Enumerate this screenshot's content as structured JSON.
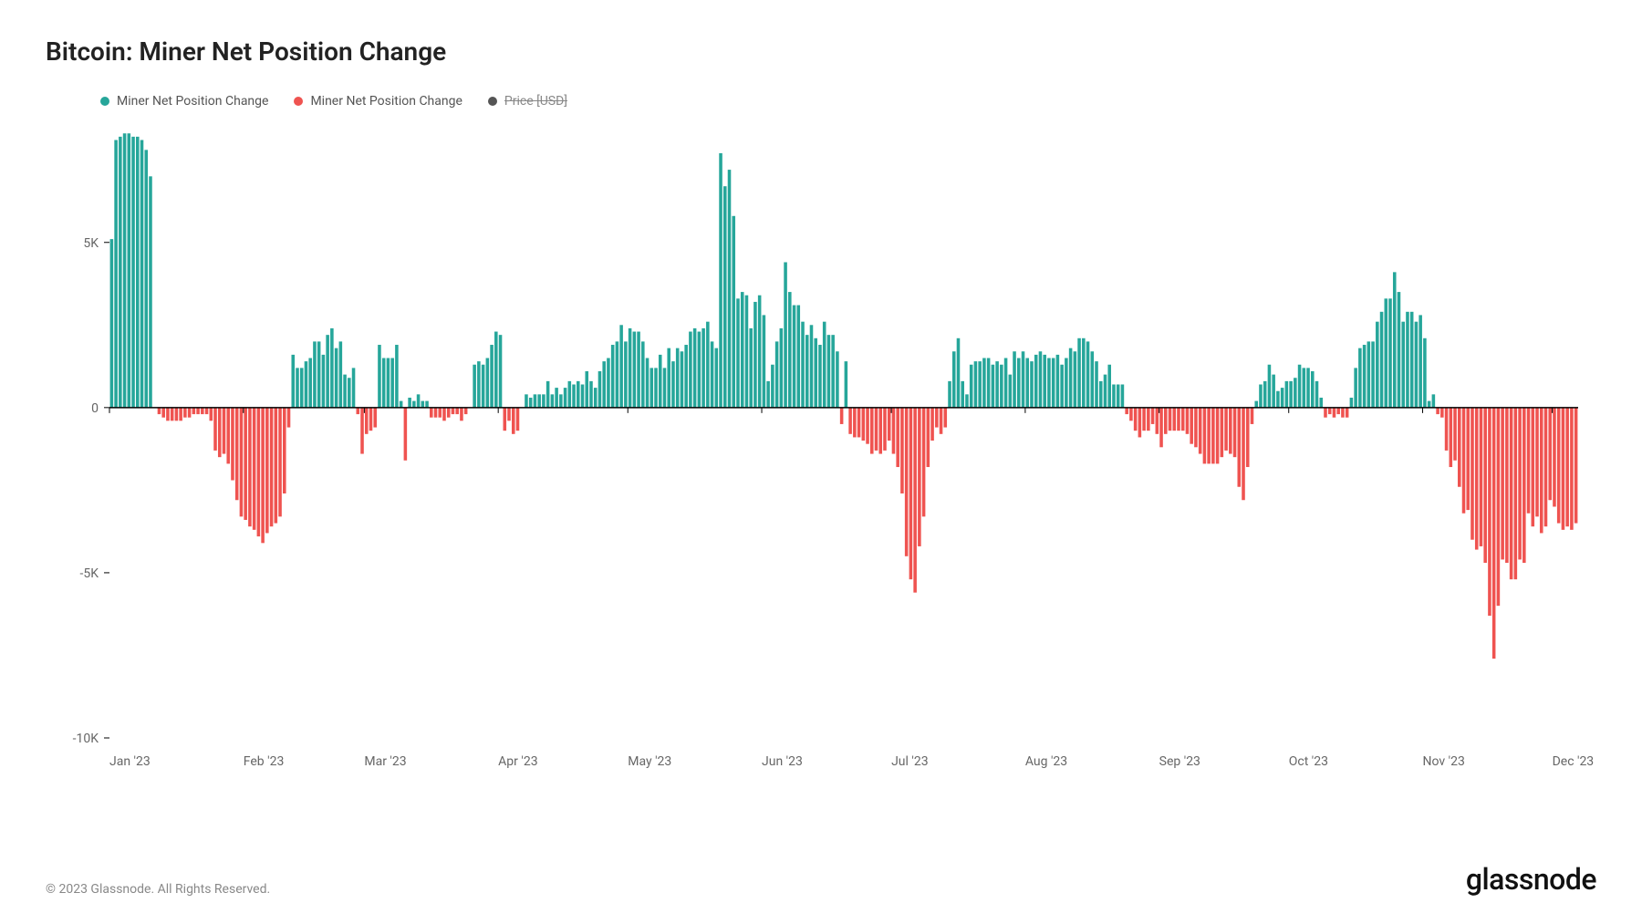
{
  "title": "Bitcoin: Miner Net Position Change",
  "legend": {
    "positive": {
      "label": "Miner Net Position Change",
      "color": "#26a69a"
    },
    "negative": {
      "label": "Miner Net Position Change",
      "color": "#ef5350"
    },
    "price": {
      "label": "Price [USD]",
      "color": "#555555"
    }
  },
  "footer": {
    "copyright": "© 2023 Glassnode. All Rights Reserved.",
    "brand": "glassnode"
  },
  "chart": {
    "type": "bar",
    "background_color": "#ffffff",
    "axis_color": "#000000",
    "tick_color": "#000000",
    "label_color": "#666666",
    "label_fontsize": 14,
    "positive_color": "#26a69a",
    "negative_color": "#ef5350",
    "y_axis": {
      "min": -10000,
      "max": 8500,
      "ticks": [
        {
          "value": 5000,
          "label": "5K"
        },
        {
          "value": 0,
          "label": "0"
        },
        {
          "value": -5000,
          "label": "-5K"
        },
        {
          "value": -10000,
          "label": "-10K"
        }
      ]
    },
    "x_axis": {
      "labels": [
        "Jan '23",
        "Feb '23",
        "Mar '23",
        "Apr '23",
        "May '23",
        "Jun '23",
        "Jul '23",
        "Aug '23",
        "Sep '23",
        "Oct '23",
        "Nov '23",
        "Dec '23"
      ],
      "positions": [
        0,
        31,
        59,
        90,
        120,
        151,
        181,
        212,
        243,
        273,
        304,
        334
      ]
    },
    "bar_gap_ratio": 0.25,
    "values": [
      5100,
      8100,
      8200,
      8300,
      8300,
      8200,
      8200,
      8100,
      7800,
      7000,
      0,
      -200,
      -300,
      -400,
      -400,
      -400,
      -400,
      -300,
      -300,
      -200,
      -200,
      -200,
      -200,
      -400,
      -1300,
      -1500,
      -1400,
      -1700,
      -2200,
      -2800,
      -3300,
      -3400,
      -3600,
      -3700,
      -3900,
      -4100,
      -3800,
      -3600,
      -3500,
      -3300,
      -2600,
      -600,
      1600,
      1200,
      1200,
      1400,
      1500,
      2000,
      2000,
      1600,
      2200,
      2400,
      1800,
      2000,
      1000,
      900,
      1200,
      -200,
      -1400,
      -800,
      -700,
      -600,
      1900,
      1500,
      1500,
      1500,
      1900,
      200,
      -1600,
      300,
      200,
      400,
      200,
      200,
      -300,
      -300,
      -300,
      -400,
      -300,
      -200,
      -200,
      -400,
      -200,
      0,
      1300,
      1400,
      1300,
      1500,
      1900,
      2300,
      2200,
      -700,
      -400,
      -800,
      -700,
      0,
      400,
      300,
      400,
      400,
      400,
      800,
      400,
      600,
      400,
      600,
      800,
      700,
      800,
      700,
      1100,
      800,
      600,
      1100,
      1400,
      1500,
      1900,
      2000,
      2500,
      2000,
      2400,
      2300,
      2300,
      2000,
      1500,
      1200,
      1200,
      1600,
      1200,
      1800,
      1400,
      1800,
      1700,
      1900,
      2300,
      2400,
      2300,
      2400,
      2600,
      2000,
      1800,
      7700,
      6700,
      7200,
      5800,
      3300,
      3500,
      3400,
      2400,
      3200,
      3400,
      2800,
      800,
      1300,
      2000,
      2400,
      4400,
      3500,
      3100,
      3100,
      2600,
      2200,
      2500,
      2100,
      1900,
      2600,
      2200,
      2200,
      1700,
      -500,
      1400,
      -800,
      -900,
      -900,
      -1000,
      -1100,
      -1400,
      -1300,
      -1400,
      -1300,
      -1000,
      -1400,
      -1800,
      -2600,
      -4500,
      -5200,
      -5600,
      -4200,
      -3300,
      -1800,
      -1000,
      -600,
      -800,
      -600,
      800,
      1700,
      2100,
      800,
      400,
      1300,
      1400,
      1400,
      1500,
      1500,
      1300,
      1400,
      1300,
      1500,
      1000,
      1700,
      1500,
      1700,
      1500,
      1400,
      1600,
      1700,
      1600,
      1500,
      1500,
      1600,
      1300,
      1500,
      1800,
      1700,
      2100,
      2100,
      2000,
      1700,
      1400,
      800,
      1000,
      1300,
      700,
      700,
      700,
      -200,
      -400,
      -700,
      -900,
      -700,
      -700,
      -500,
      -800,
      -1200,
      -800,
      -700,
      -700,
      -700,
      -700,
      -800,
      -1100,
      -1200,
      -1400,
      -1700,
      -1700,
      -1700,
      -1700,
      -1500,
      -1300,
      -1400,
      -1500,
      -2400,
      -2800,
      -1800,
      -500,
      200,
      700,
      800,
      1300,
      1000,
      500,
      600,
      800,
      800,
      900,
      1300,
      1200,
      1200,
      1100,
      800,
      300,
      -300,
      -200,
      -300,
      -200,
      -300,
      -300,
      300,
      1200,
      1800,
      1900,
      2000,
      2000,
      2600,
      2900,
      3300,
      3300,
      4100,
      3500,
      2600,
      2900,
      2900,
      2600,
      2800,
      2100,
      200,
      400,
      -200,
      -300,
      -1300,
      -1800,
      -1600,
      -2400,
      -3200,
      -3100,
      -4000,
      -4300,
      -4200,
      -4700,
      -6300,
      -7600,
      -6000,
      -4600,
      -4700,
      -5200,
      -5200,
      -4600,
      -4700,
      -3200,
      -3600,
      -3300,
      -3800,
      -3600,
      -2800,
      -3000,
      -3500,
      -3700,
      -3600,
      -3700,
      -3500
    ]
  }
}
